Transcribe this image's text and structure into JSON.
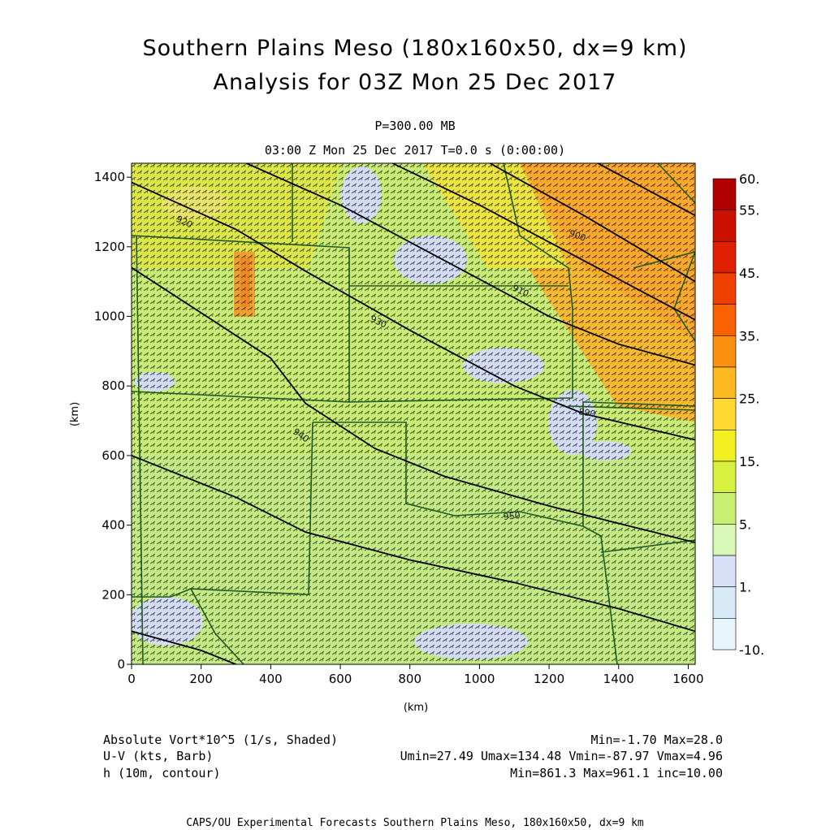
{
  "title": {
    "line1": "Southern Plains Meso (180x160x50, dx=9 km)",
    "line2": "Analysis for 03Z Mon 25 Dec 2017"
  },
  "subtitle": {
    "level": "P=300.00 MB",
    "time": "03:00 Z Mon 25 Dec 2017   T=0.0 s (0:00:00)"
  },
  "axes": {
    "xlabel": "(km)",
    "ylabel": "(km)",
    "xticks": [
      "0",
      "200",
      "400",
      "600",
      "800",
      "1000",
      "1200",
      "1400",
      "1600"
    ],
    "yticks": [
      "0",
      "200",
      "400",
      "600",
      "800",
      "1000",
      "1200",
      "1400"
    ],
    "xlim": [
      0,
      1620
    ],
    "ylim": [
      0,
      1440
    ]
  },
  "colorbar": {
    "labels": [
      "60.",
      "55.",
      "45.",
      "35.",
      "25.",
      "15.",
      "5.",
      "1.",
      "-10."
    ],
    "colors": [
      "#b00000",
      "#cc1100",
      "#e02000",
      "#f04000",
      "#f86000",
      "#fb8f10",
      "#fdb820",
      "#ffd830",
      "#f2f020",
      "#d8f040",
      "#c8f070",
      "#d8f8b8",
      "#d8e0f8",
      "#d8eaf8",
      "#e8f6fc"
    ]
  },
  "contour_labels": [
    "920",
    "930",
    "940",
    "950",
    "910",
    "900",
    "890",
    "880"
  ],
  "legend": {
    "row1_left": "Absolute Vort*10^5 (1/s, Shaded)",
    "row1_right": "Min=-1.70 Max=28.0",
    "row2_left": "U-V (kts, Barb)",
    "row2_right": "Umin=27.49 Umax=134.48 Vmin=-87.97 Vmax=4.96",
    "row3_left": "h (10m, contour)",
    "row3_right": "Min=861.3 Max=961.1 inc=10.00"
  },
  "footer": "CAPS/OU Experimental Forecasts  Southern Plains Meso, 180x160x50, dx=9 km",
  "chart_data": {
    "type": "heatmap",
    "fields": [
      "Absolute vorticity x10^5 (shaded)",
      "U-V wind barbs (kts)",
      "Geopotential height (10m, contour)"
    ],
    "vorticity_range": [
      -1.7,
      28.0
    ],
    "height_range": [
      861.3,
      961.1
    ],
    "height_contour_increment": 10.0,
    "u_range": [
      27.49,
      134.48
    ],
    "v_range": [
      -87.97,
      4.96
    ],
    "contours": [
      {
        "value": 960,
        "points": [
          [
            0,
            95
          ],
          [
            200,
            40
          ],
          [
            300,
            0
          ]
        ]
      },
      {
        "value": 950,
        "points": [
          [
            0,
            600
          ],
          [
            300,
            480
          ],
          [
            500,
            380
          ],
          [
            800,
            300
          ],
          [
            1100,
            235
          ],
          [
            1400,
            160
          ],
          [
            1620,
            95
          ]
        ]
      },
      {
        "value": 940,
        "points": [
          [
            0,
            1140
          ],
          [
            200,
            1010
          ],
          [
            400,
            880
          ],
          [
            500,
            750
          ],
          [
            700,
            620
          ],
          [
            900,
            540
          ],
          [
            1200,
            455
          ],
          [
            1500,
            380
          ],
          [
            1620,
            350
          ]
        ]
      },
      {
        "value": 930,
        "points": [
          [
            0,
            1385
          ],
          [
            300,
            1250
          ],
          [
            500,
            1130
          ],
          [
            800,
            960
          ],
          [
            1100,
            800
          ],
          [
            1300,
            720
          ],
          [
            1620,
            645
          ]
        ]
      },
      {
        "value": 920,
        "points": [
          [
            330,
            1440
          ],
          [
            600,
            1320
          ],
          [
            900,
            1160
          ],
          [
            1200,
            1000
          ],
          [
            1400,
            920
          ],
          [
            1620,
            860
          ]
        ]
      },
      {
        "value": 910,
        "points": [
          [
            750,
            1440
          ],
          [
            1000,
            1320
          ],
          [
            1300,
            1160
          ],
          [
            1620,
            990
          ]
        ]
      },
      {
        "value": 900,
        "points": [
          [
            1030,
            1440
          ],
          [
            1300,
            1290
          ],
          [
            1620,
            1100
          ]
        ]
      },
      {
        "value": 890,
        "points": [
          [
            1340,
            1440
          ],
          [
            1620,
            1290
          ]
        ]
      }
    ]
  }
}
